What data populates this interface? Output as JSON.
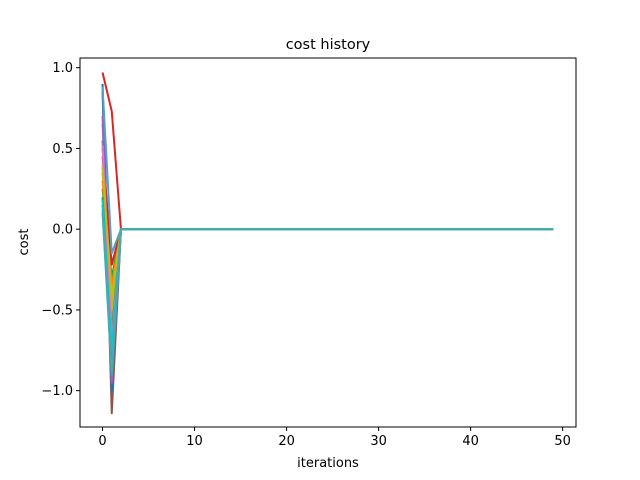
{
  "chart_data": {
    "type": "line",
    "title": "cost history",
    "xlabel": "iterations",
    "ylabel": "cost",
    "xlim": [
      -2.45,
      51.45
    ],
    "ylim": [
      -1.225,
      1.06
    ],
    "xticks": [
      0,
      10,
      20,
      30,
      40,
      50
    ],
    "yticks": [
      -1.0,
      -0.5,
      0.0,
      0.5,
      1.0
    ],
    "xtick_labels": [
      "0",
      "10",
      "20",
      "30",
      "40",
      "50"
    ],
    "ytick_labels": [
      "−1.0",
      "−0.5",
      "0.0",
      "0.5",
      "1.0"
    ],
    "grid": false,
    "iterations": 50,
    "series": [
      {
        "color": "#1f77b4",
        "values": [
          0.15,
          -0.6,
          0.0
        ]
      },
      {
        "color": "#ff7f0e",
        "values": [
          0.35,
          -0.45,
          0.0
        ]
      },
      {
        "color": "#2ca02c",
        "values": [
          0.25,
          -0.3,
          0.0
        ]
      },
      {
        "color": "#d62728",
        "values": [
          0.97,
          0.73,
          0.0
        ]
      },
      {
        "color": "#9467bd",
        "values": [
          0.45,
          -0.4,
          0.0
        ]
      },
      {
        "color": "#8c564b",
        "values": [
          0.85,
          -1.14,
          0.0
        ]
      },
      {
        "color": "#e377c2",
        "values": [
          0.65,
          -0.55,
          0.0
        ]
      },
      {
        "color": "#7f7f7f",
        "values": [
          0.55,
          -0.8,
          0.0
        ]
      },
      {
        "color": "#bcbd22",
        "values": [
          0.4,
          -0.5,
          0.0
        ]
      },
      {
        "color": "#17becf",
        "values": [
          0.12,
          -0.85,
          0.0
        ]
      },
      {
        "color": "#1f77b4",
        "values": [
          0.9,
          -1.0,
          0.0
        ]
      },
      {
        "color": "#ff7f0e",
        "values": [
          0.3,
          -0.35,
          0.0
        ]
      },
      {
        "color": "#2ca02c",
        "values": [
          0.2,
          -0.65,
          0.0
        ]
      },
      {
        "color": "#d62728",
        "values": [
          0.5,
          -0.22,
          0.0
        ]
      },
      {
        "color": "#9467bd",
        "values": [
          0.7,
          -0.95,
          0.0
        ]
      },
      {
        "color": "#e377c2",
        "values": [
          0.52,
          -0.7,
          0.0
        ]
      },
      {
        "color": "#bcbd22",
        "values": [
          0.38,
          -0.42,
          0.0
        ]
      },
      {
        "color": "#5a9fc0",
        "values": [
          0.88,
          -0.15,
          0.0
        ]
      },
      {
        "color": "#17becf",
        "values": [
          0.18,
          -0.75,
          0.0
        ]
      },
      {
        "color": "#4aa9a9",
        "values": [
          0.1,
          -0.9,
          0.0
        ]
      }
    ]
  }
}
